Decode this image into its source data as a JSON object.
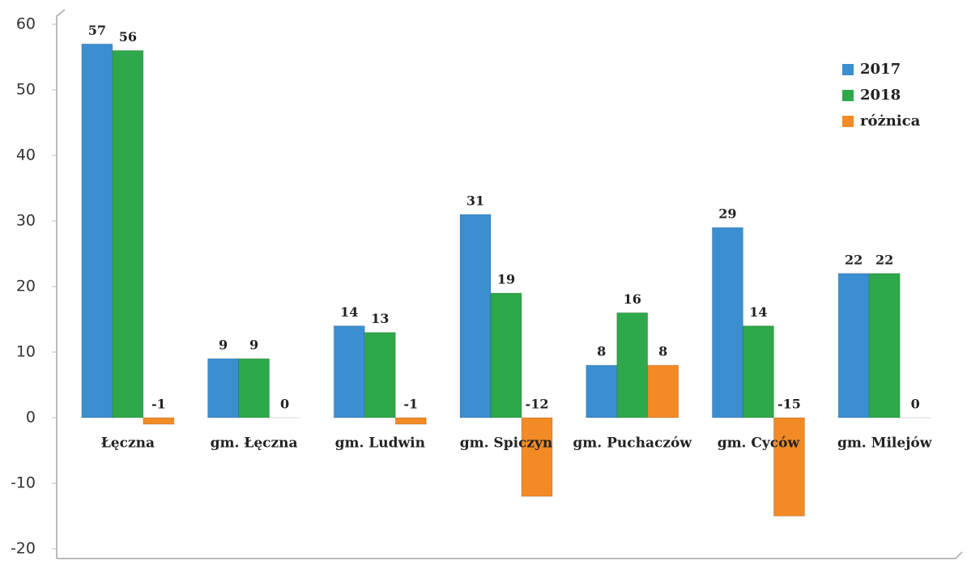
{
  "chart_data": {
    "type": "bar",
    "categories": [
      "Łęczna",
      "gm. Łęczna",
      "gm. Ludwin",
      "gm. Spiczyn",
      "gm. Puchaczów",
      "gm. Cyców",
      "gm. Milejów"
    ],
    "series": [
      {
        "name": "2017",
        "color": "#3b8fd1",
        "values": [
          57,
          9,
          14,
          31,
          8,
          29,
          22
        ]
      },
      {
        "name": "2018",
        "color": "#2ea84a",
        "values": [
          56,
          9,
          13,
          19,
          16,
          14,
          22
        ]
      },
      {
        "name": "różnica",
        "color": "#f28a25",
        "values": [
          -1,
          0,
          -1,
          -12,
          8,
          -15,
          0
        ]
      }
    ],
    "ylim": [
      -20,
      60
    ],
    "yticks": [
      -20,
      -10,
      0,
      10,
      20,
      30,
      40,
      50,
      60
    ],
    "legend": "top-right"
  }
}
